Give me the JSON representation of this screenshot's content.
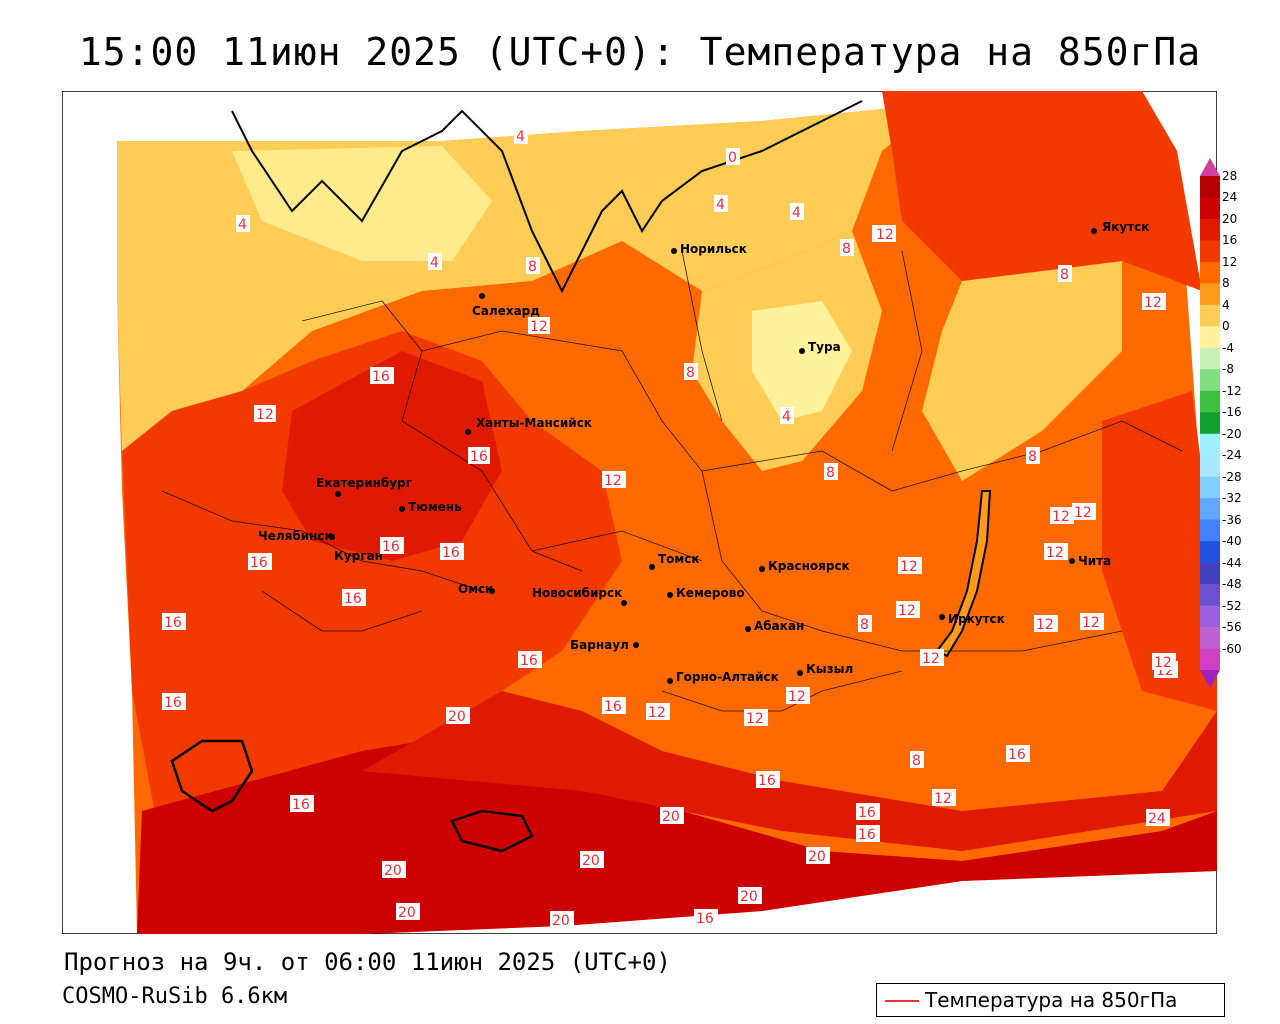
{
  "title": "15:00 11июн 2025 (UTC+0): Температура на 850гПа",
  "footer": {
    "forecast": "Прогноз на 9ч. от 06:00 11июн 2025 (UTC+0)",
    "model": "COSMO-RuSib 6.6км"
  },
  "legend": {
    "label": "Температура на 850гПа",
    "color": "#e8303a"
  },
  "colorbar": {
    "ticks": [
      "28",
      "24",
      "20",
      "16",
      "12",
      "8",
      "4",
      "0",
      "-4",
      "-8",
      "-12",
      "-16",
      "-20",
      "-24",
      "-28",
      "-32",
      "-36",
      "-40",
      "-44",
      "-48",
      "-52",
      "-56",
      "-60"
    ],
    "colors": [
      "#b50000",
      "#cc0000",
      "#e01a00",
      "#f23a00",
      "#ff6a00",
      "#ff9a1a",
      "#ffcc55",
      "#fff29a",
      "#c8f0b0",
      "#80e080",
      "#40c040",
      "#10a030",
      "#9ff0ff",
      "#a8e8ff",
      "#80d0ff",
      "#60a8ff",
      "#4080ff",
      "#2050e0",
      "#4040c0",
      "#6a50d0",
      "#9a60e0",
      "#c060d0",
      "#d040c0"
    ]
  },
  "cities": [
    {
      "name": "Якутск"
    },
    {
      "name": "Норильск"
    },
    {
      "name": "Салехард"
    },
    {
      "name": "Тура"
    },
    {
      "name": "Ханты-Мансийск"
    },
    {
      "name": "Екатеринбург"
    },
    {
      "name": "Тюмень"
    },
    {
      "name": "Челябинск"
    },
    {
      "name": "Курган"
    },
    {
      "name": "Омск"
    },
    {
      "name": "Новосибирск"
    },
    {
      "name": "Томск"
    },
    {
      "name": "Кемерово"
    },
    {
      "name": "Красноярск"
    },
    {
      "name": "Барнаул"
    },
    {
      "name": "Абакан"
    },
    {
      "name": "Иркутск"
    },
    {
      "name": "Чита"
    },
    {
      "name": "Кызыл"
    },
    {
      "name": "Горно-Алтайск"
    }
  ],
  "isotherm_labels": [
    "4",
    "0",
    "4",
    "4",
    "4",
    "4",
    "8",
    "12",
    "12",
    "8",
    "12",
    "16",
    "8",
    "12",
    "16",
    "12",
    "8",
    "4",
    "8",
    "8",
    "12",
    "12",
    "12",
    "16",
    "16",
    "16",
    "12",
    "12",
    "16",
    "12",
    "8",
    "12",
    "16",
    "20",
    "16",
    "12",
    "12",
    "16",
    "20",
    "16",
    "8",
    "12",
    "16",
    "20",
    "20",
    "20",
    "20",
    "16",
    "24",
    "20",
    "16",
    "12",
    "20",
    "16",
    "16",
    "12",
    "16",
    "12",
    "12"
  ],
  "map_regions": {
    "north_cool": "#ffcc55",
    "north_coldest": "#fff29a",
    "warm": "#ff6a00",
    "hot": "#f23a00",
    "hotter": "#e01a00",
    "hottest": "#cc0000"
  }
}
